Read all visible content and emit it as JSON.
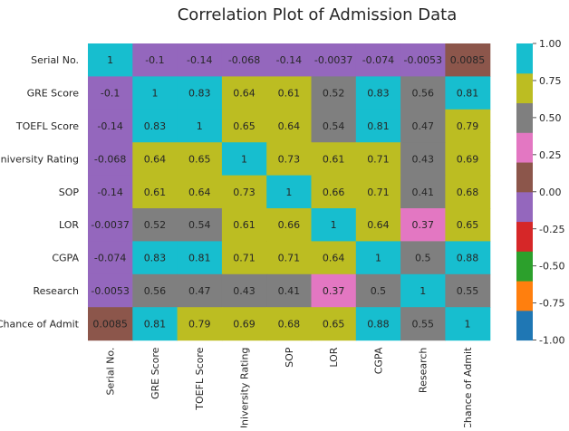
{
  "chart_data": {
    "type": "heatmap",
    "title": "Correlation Plot of Admission Data",
    "row_labels": [
      "Serial No.",
      "GRE Score",
      "TOEFL Score",
      "University Rating",
      "SOP",
      "LOR",
      "CGPA",
      "Research",
      "Chance of Admit"
    ],
    "col_labels": [
      "Serial No.",
      "GRE Score",
      "TOEFL Score",
      "University Rating",
      "SOP",
      "LOR",
      "CGPA",
      "Research",
      "Chance of Admit"
    ],
    "values": [
      [
        1,
        -0.1,
        -0.14,
        -0.068,
        -0.14,
        -0.0037,
        -0.074,
        -0.0053,
        0.0085
      ],
      [
        -0.1,
        1,
        0.83,
        0.64,
        0.61,
        0.52,
        0.83,
        0.56,
        0.81
      ],
      [
        -0.14,
        0.83,
        1,
        0.65,
        0.64,
        0.54,
        0.81,
        0.47,
        0.79
      ],
      [
        -0.068,
        0.64,
        0.65,
        1,
        0.73,
        0.61,
        0.71,
        0.43,
        0.69
      ],
      [
        -0.14,
        0.61,
        0.64,
        0.73,
        1,
        0.66,
        0.71,
        0.41,
        0.68
      ],
      [
        -0.0037,
        0.52,
        0.54,
        0.61,
        0.66,
        1,
        0.64,
        0.37,
        0.65
      ],
      [
        -0.074,
        0.83,
        0.81,
        0.71,
        0.71,
        0.64,
        1,
        0.5,
        0.88
      ],
      [
        -0.0053,
        0.56,
        0.47,
        0.43,
        0.41,
        0.37,
        0.5,
        1,
        0.55
      ],
      [
        0.0085,
        0.81,
        0.79,
        0.69,
        0.68,
        0.65,
        0.88,
        0.55,
        1
      ]
    ],
    "value_range": [
      -1,
      1
    ],
    "colorbar_ticks": [
      "1.00",
      "0.75",
      "0.50",
      "0.25",
      "0.00",
      "-0.25",
      "-0.50",
      "-0.75",
      "-1.00"
    ],
    "colorbar_tick_values": [
      1,
      0.75,
      0.5,
      0.25,
      0,
      -0.25,
      -0.5,
      -0.75,
      -1
    ],
    "colormap": [
      "#1f77b4",
      "#ff7f0e",
      "#2ca02c",
      "#d62728",
      "#9467bd",
      "#8c564b",
      "#e377c2",
      "#7f7f7f",
      "#bcbd22",
      "#17becf"
    ],
    "annotation_color": "#262626",
    "tick_color": "#262626",
    "title_color": "#262626"
  }
}
